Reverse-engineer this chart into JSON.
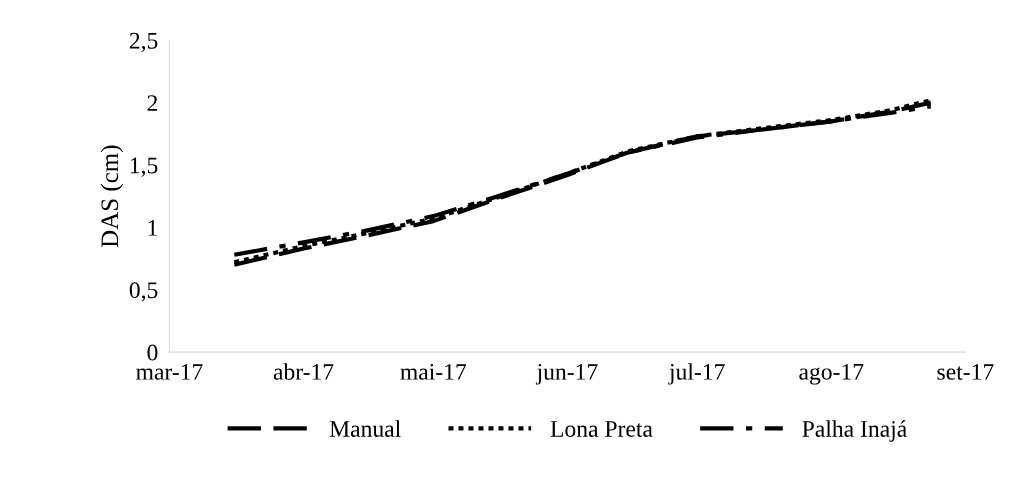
{
  "chart_data": {
    "type": "line",
    "ylabel": "DAS (cm)",
    "x": [
      "2017-03-16",
      "2017-04-01",
      "2017-04-15",
      "2017-05-01",
      "2017-05-15",
      "2017-06-01",
      "2017-06-15",
      "2017-07-01",
      "2017-07-15",
      "2017-08-01",
      "2017-08-15",
      "2017-08-24"
    ],
    "series": [
      {
        "name": "Manual",
        "color": "#000000",
        "line_style": "dashed",
        "values": [
          0.7,
          0.83,
          0.93,
          1.05,
          1.22,
          1.42,
          1.6,
          1.73,
          1.78,
          1.85,
          1.93,
          2.0
        ]
      },
      {
        "name": "Lona Preta",
        "color": "#000000",
        "line_style": "dotted",
        "values": [
          0.72,
          0.85,
          0.95,
          1.07,
          1.23,
          1.43,
          1.61,
          1.73,
          1.79,
          1.86,
          1.94,
          2.02
        ]
      },
      {
        "name": "Palha Inajá",
        "color": "#000000",
        "line_style": "dashdot",
        "values": [
          0.78,
          0.88,
          0.97,
          1.09,
          1.24,
          1.43,
          1.6,
          1.72,
          1.78,
          1.85,
          1.92,
          1.97
        ]
      }
    ],
    "xlim": [
      "2017-03-01",
      "2017-09-01"
    ],
    "xticks": [
      {
        "value": "2017-03-01",
        "label": "mar-17"
      },
      {
        "value": "2017-04-01",
        "label": "abr-17"
      },
      {
        "value": "2017-05-01",
        "label": "mai-17"
      },
      {
        "value": "2017-06-01",
        "label": "jun-17"
      },
      {
        "value": "2017-07-01",
        "label": "jul-17"
      },
      {
        "value": "2017-08-01",
        "label": "ago-17"
      },
      {
        "value": "2017-09-01",
        "label": "set-17"
      }
    ],
    "ylim": [
      0,
      2.5
    ],
    "yticks": [
      0,
      {
        "value": 0.5,
        "label": "0,5"
      },
      1,
      {
        "value": 1.5,
        "label": "1,5"
      },
      2,
      {
        "value": 2.5,
        "label": "2,5"
      }
    ],
    "legend": "bottom",
    "grid": false
  }
}
